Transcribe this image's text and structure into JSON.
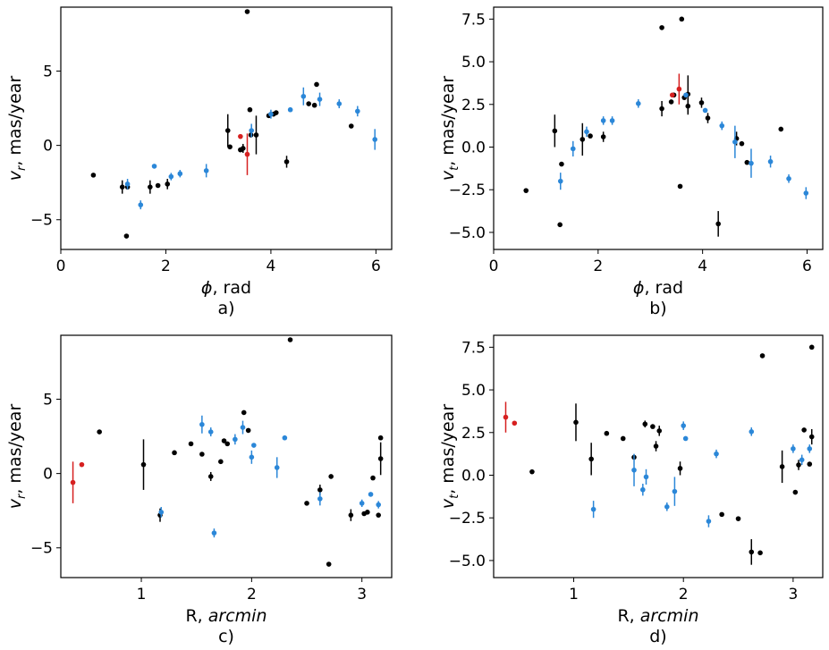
{
  "colors": {
    "black": "#000000",
    "blue": "#2b87d8",
    "red": "#d62020"
  },
  "chart_data": [
    {
      "id": "a",
      "type": "scatter",
      "panel_label": "a)",
      "xlabel_main": "ϕ",
      "xlabel_unit": ", rad",
      "ylabel_main": "v",
      "ylabel_sub": "r",
      "ylabel_unit": ", mas/year",
      "xlim": [
        0,
        6.3
      ],
      "ylim": [
        -7,
        9.3
      ],
      "xticks": [
        0,
        2,
        4,
        6
      ],
      "yticks": [
        -5,
        0,
        5
      ],
      "xticklabels": [
        "0",
        "2",
        "4",
        "6"
      ],
      "yticklabels": [
        "−5",
        "0",
        "5"
      ],
      "series": [
        {
          "name": "black",
          "color": "#000000",
          "points": [
            {
              "x": 0.62,
              "y": -2.0,
              "e": 0
            },
            {
              "x": 1.17,
              "y": -2.8,
              "e": 0.45
            },
            {
              "x": 1.25,
              "y": -6.1,
              "e": 0
            },
            {
              "x": 1.27,
              "y": -2.8,
              "e": 0
            },
            {
              "x": 1.7,
              "y": -2.8,
              "e": 0.45
            },
            {
              "x": 1.85,
              "y": -2.7,
              "e": 0
            },
            {
              "x": 2.03,
              "y": -2.6,
              "e": 0.35
            },
            {
              "x": 3.18,
              "y": 1.0,
              "e": 1.1
            },
            {
              "x": 3.22,
              "y": -0.1,
              "e": 0
            },
            {
              "x": 3.42,
              "y": -0.3,
              "e": 0
            },
            {
              "x": 3.47,
              "y": -0.2,
              "e": 0.3
            },
            {
              "x": 3.55,
              "y": 9.0,
              "e": 0
            },
            {
              "x": 3.6,
              "y": 2.4,
              "e": 0
            },
            {
              "x": 3.62,
              "y": 0.7,
              "e": 0
            },
            {
              "x": 3.72,
              "y": 0.7,
              "e": 1.3
            },
            {
              "x": 3.96,
              "y": 2.0,
              "e": 0
            },
            {
              "x": 4.05,
              "y": 2.1,
              "e": 0
            },
            {
              "x": 4.1,
              "y": 2.2,
              "e": 0
            },
            {
              "x": 4.3,
              "y": -1.1,
              "e": 0.4
            },
            {
              "x": 4.72,
              "y": 2.8,
              "e": 0
            },
            {
              "x": 4.83,
              "y": 2.7,
              "e": 0
            },
            {
              "x": 4.87,
              "y": 4.1,
              "e": 0
            },
            {
              "x": 5.53,
              "y": 1.3,
              "e": 0
            }
          ]
        },
        {
          "name": "blue",
          "color": "#2b87d8",
          "points": [
            {
              "x": 1.27,
              "y": -2.6,
              "e": 0.35
            },
            {
              "x": 1.52,
              "y": -4.0,
              "e": 0.3
            },
            {
              "x": 1.78,
              "y": -1.4,
              "e": 0
            },
            {
              "x": 2.1,
              "y": -2.1,
              "e": 0.25
            },
            {
              "x": 2.27,
              "y": -1.9,
              "e": 0.25
            },
            {
              "x": 2.77,
              "y": -1.7,
              "e": 0.45
            },
            {
              "x": 3.63,
              "y": 1.0,
              "e": 0.45
            },
            {
              "x": 4.0,
              "y": 2.1,
              "e": 0.3
            },
            {
              "x": 4.37,
              "y": 2.4,
              "e": 0
            },
            {
              "x": 4.62,
              "y": 3.3,
              "e": 0.6
            },
            {
              "x": 4.93,
              "y": 3.1,
              "e": 0.45
            },
            {
              "x": 5.3,
              "y": 2.8,
              "e": 0.3
            },
            {
              "x": 5.65,
              "y": 2.3,
              "e": 0.35
            },
            {
              "x": 5.98,
              "y": 0.4,
              "e": 0.7
            }
          ]
        },
        {
          "name": "red",
          "color": "#d62020",
          "points": [
            {
              "x": 3.42,
              "y": 0.6,
              "e": 0
            },
            {
              "x": 3.55,
              "y": -0.6,
              "e": 1.4
            }
          ]
        }
      ]
    },
    {
      "id": "b",
      "type": "scatter",
      "panel_label": "b)",
      "xlabel_main": "ϕ",
      "xlabel_unit": ", rad",
      "ylabel_main": "v",
      "ylabel_sub": "t",
      "ylabel_unit": ", mas/year",
      "xlim": [
        0,
        6.3
      ],
      "ylim": [
        -6.0,
        8.2
      ],
      "xticks": [
        0,
        2,
        4,
        6
      ],
      "yticks": [
        -5.0,
        -2.5,
        0.0,
        2.5,
        5.0,
        7.5
      ],
      "xticklabels": [
        "0",
        "2",
        "4",
        "6"
      ],
      "yticklabels": [
        "−5.0",
        "−2.5",
        "0.0",
        "2.5",
        "5.0",
        "7.5"
      ],
      "series": [
        {
          "name": "black",
          "color": "#000000",
          "points": [
            {
              "x": 0.62,
              "y": -2.55,
              "e": 0
            },
            {
              "x": 1.17,
              "y": 0.95,
              "e": 0.95
            },
            {
              "x": 1.27,
              "y": -4.55,
              "e": 0
            },
            {
              "x": 1.3,
              "y": -1.0,
              "e": 0
            },
            {
              "x": 1.7,
              "y": 0.45,
              "e": 0.95
            },
            {
              "x": 1.85,
              "y": 0.65,
              "e": 0
            },
            {
              "x": 2.1,
              "y": 0.6,
              "e": 0.3
            },
            {
              "x": 3.22,
              "y": 2.25,
              "e": 0.45
            },
            {
              "x": 3.22,
              "y": 7.0,
              "e": 0
            },
            {
              "x": 3.4,
              "y": 2.65,
              "e": 0
            },
            {
              "x": 3.45,
              "y": 3.05,
              "e": 0
            },
            {
              "x": 3.57,
              "y": -2.3,
              "e": 0
            },
            {
              "x": 3.6,
              "y": 7.5,
              "e": 0
            },
            {
              "x": 3.65,
              "y": 2.9,
              "e": 0
            },
            {
              "x": 3.72,
              "y": 3.1,
              "e": 1.1
            },
            {
              "x": 3.72,
              "y": 2.4,
              "e": 0.5
            },
            {
              "x": 3.98,
              "y": 2.6,
              "e": 0.3
            },
            {
              "x": 4.1,
              "y": 1.7,
              "e": 0.3
            },
            {
              "x": 4.3,
              "y": -4.5,
              "e": 0.75
            },
            {
              "x": 4.65,
              "y": 0.5,
              "e": 0.4
            },
            {
              "x": 4.75,
              "y": 0.2,
              "e": 0
            },
            {
              "x": 4.85,
              "y": -0.9,
              "e": 0
            },
            {
              "x": 5.5,
              "y": 1.05,
              "e": 0
            }
          ]
        },
        {
          "name": "blue",
          "color": "#2b87d8",
          "points": [
            {
              "x": 1.28,
              "y": -2.0,
              "e": 0.5
            },
            {
              "x": 1.52,
              "y": -0.1,
              "e": 0.45
            },
            {
              "x": 1.78,
              "y": 0.9,
              "e": 0.3
            },
            {
              "x": 2.1,
              "y": 1.55,
              "e": 0.25
            },
            {
              "x": 2.27,
              "y": 1.55,
              "e": 0.25
            },
            {
              "x": 2.77,
              "y": 2.55,
              "e": 0.25
            },
            {
              "x": 3.68,
              "y": 3.05,
              "e": 0
            },
            {
              "x": 4.05,
              "y": 2.15,
              "e": 0
            },
            {
              "x": 4.37,
              "y": 1.25,
              "e": 0.25
            },
            {
              "x": 4.62,
              "y": 0.3,
              "e": 0.95
            },
            {
              "x": 4.93,
              "y": -0.95,
              "e": 0.85
            },
            {
              "x": 5.3,
              "y": -0.85,
              "e": 0.35
            },
            {
              "x": 5.65,
              "y": -1.85,
              "e": 0.25
            },
            {
              "x": 5.98,
              "y": -2.7,
              "e": 0.35
            }
          ]
        },
        {
          "name": "red",
          "color": "#d62020",
          "points": [
            {
              "x": 3.42,
              "y": 3.05,
              "e": 0
            },
            {
              "x": 3.55,
              "y": 3.4,
              "e": 0.9
            }
          ]
        }
      ]
    },
    {
      "id": "c",
      "type": "scatter",
      "panel_label": "c)",
      "xlabel_main": "R, ",
      "xlabel_unit": "arcmin",
      "ylabel_main": "v",
      "ylabel_sub": "r",
      "ylabel_unit": ", mas/year",
      "xlim": [
        0.27,
        3.27
      ],
      "ylim": [
        -7,
        9.3
      ],
      "xticks": [
        1,
        2,
        3
      ],
      "yticks": [
        -5,
        0,
        5
      ],
      "xticklabels": [
        "1",
        "2",
        "3"
      ],
      "yticklabels": [
        "−5",
        "0",
        "5"
      ],
      "series": [
        {
          "name": "black",
          "color": "#000000",
          "points": [
            {
              "x": 0.62,
              "y": 2.8,
              "e": 0
            },
            {
              "x": 1.02,
              "y": 0.6,
              "e": 1.7
            },
            {
              "x": 1.17,
              "y": -2.8,
              "e": 0.45
            },
            {
              "x": 1.3,
              "y": 1.4,
              "e": 0
            },
            {
              "x": 1.45,
              "y": 2.0,
              "e": 0
            },
            {
              "x": 1.55,
              "y": 1.3,
              "e": 0
            },
            {
              "x": 1.63,
              "y": -0.2,
              "e": 0.3
            },
            {
              "x": 1.72,
              "y": 0.8,
              "e": 0
            },
            {
              "x": 1.75,
              "y": 2.2,
              "e": 0
            },
            {
              "x": 1.78,
              "y": 2.0,
              "e": 0
            },
            {
              "x": 1.93,
              "y": 4.1,
              "e": 0
            },
            {
              "x": 1.97,
              "y": 2.9,
              "e": 0
            },
            {
              "x": 2.35,
              "y": 9.0,
              "e": 0
            },
            {
              "x": 2.5,
              "y": -2.0,
              "e": 0
            },
            {
              "x": 2.62,
              "y": -1.1,
              "e": 0.35
            },
            {
              "x": 2.7,
              "y": -6.1,
              "e": 0
            },
            {
              "x": 2.72,
              "y": -0.2,
              "e": 0
            },
            {
              "x": 2.9,
              "y": -2.8,
              "e": 0.4
            },
            {
              "x": 3.02,
              "y": -2.7,
              "e": 0
            },
            {
              "x": 3.05,
              "y": -2.6,
              "e": 0
            },
            {
              "x": 3.1,
              "y": -0.3,
              "e": 0
            },
            {
              "x": 3.15,
              "y": -2.8,
              "e": 0
            },
            {
              "x": 3.17,
              "y": 1.0,
              "e": 1.1
            },
            {
              "x": 3.17,
              "y": 2.4,
              "e": 0
            }
          ]
        },
        {
          "name": "blue",
          "color": "#2b87d8",
          "points": [
            {
              "x": 1.18,
              "y": -2.6,
              "e": 0.35
            },
            {
              "x": 1.55,
              "y": 3.3,
              "e": 0.6
            },
            {
              "x": 1.63,
              "y": 2.8,
              "e": 0.3
            },
            {
              "x": 1.66,
              "y": -4.0,
              "e": 0.3
            },
            {
              "x": 1.85,
              "y": 2.3,
              "e": 0.35
            },
            {
              "x": 1.92,
              "y": 3.1,
              "e": 0.45
            },
            {
              "x": 2.0,
              "y": 1.1,
              "e": 0.45
            },
            {
              "x": 2.02,
              "y": 1.9,
              "e": 0
            },
            {
              "x": 2.23,
              "y": 0.4,
              "e": 0.7
            },
            {
              "x": 2.3,
              "y": 2.4,
              "e": 0
            },
            {
              "x": 2.62,
              "y": -1.7,
              "e": 0.45
            },
            {
              "x": 3.0,
              "y": -2.0,
              "e": 0.25
            },
            {
              "x": 3.08,
              "y": -1.4,
              "e": 0
            },
            {
              "x": 3.15,
              "y": -2.1,
              "e": 0.25
            }
          ]
        },
        {
          "name": "red",
          "color": "#d62020",
          "points": [
            {
              "x": 0.38,
              "y": -0.6,
              "e": 1.4
            },
            {
              "x": 0.46,
              "y": 0.6,
              "e": 0
            }
          ]
        }
      ]
    },
    {
      "id": "d",
      "type": "scatter",
      "panel_label": "d)",
      "xlabel_main": "R, ",
      "xlabel_unit": "arcmin",
      "ylabel_main": "v",
      "ylabel_sub": "t",
      "ylabel_unit": ", mas/year",
      "xlim": [
        0.27,
        3.27
      ],
      "ylim": [
        -6.0,
        8.2
      ],
      "xticks": [
        1,
        2,
        3
      ],
      "yticks": [
        -5.0,
        -2.5,
        0.0,
        2.5,
        5.0,
        7.5
      ],
      "xticklabels": [
        "1",
        "2",
        "3"
      ],
      "yticklabels": [
        "−5.0",
        "−2.5",
        "0.0",
        "2.5",
        "5.0",
        "7.5"
      ],
      "series": [
        {
          "name": "black",
          "color": "#000000",
          "points": [
            {
              "x": 0.62,
              "y": 0.2,
              "e": 0
            },
            {
              "x": 1.02,
              "y": 3.1,
              "e": 1.1
            },
            {
              "x": 1.16,
              "y": 0.95,
              "e": 0.95
            },
            {
              "x": 1.3,
              "y": 2.45,
              "e": 0
            },
            {
              "x": 1.45,
              "y": 2.15,
              "e": 0
            },
            {
              "x": 1.55,
              "y": 1.05,
              "e": 0
            },
            {
              "x": 1.65,
              "y": 3.0,
              "e": 0.2
            },
            {
              "x": 1.72,
              "y": 2.85,
              "e": 0
            },
            {
              "x": 1.75,
              "y": 1.7,
              "e": 0.3
            },
            {
              "x": 1.78,
              "y": 2.6,
              "e": 0.3
            },
            {
              "x": 1.97,
              "y": 0.4,
              "e": 0.4
            },
            {
              "x": 2.35,
              "y": -2.3,
              "e": 0
            },
            {
              "x": 2.5,
              "y": -2.55,
              "e": 0
            },
            {
              "x": 2.62,
              "y": -4.5,
              "e": 0.75
            },
            {
              "x": 2.7,
              "y": -4.55,
              "e": 0
            },
            {
              "x": 2.72,
              "y": 7.0,
              "e": 0
            },
            {
              "x": 2.9,
              "y": 0.5,
              "e": 0.95
            },
            {
              "x": 3.02,
              "y": -1.0,
              "e": 0
            },
            {
              "x": 3.05,
              "y": 0.6,
              "e": 0.3
            },
            {
              "x": 3.1,
              "y": 2.65,
              "e": 0
            },
            {
              "x": 3.15,
              "y": 0.65,
              "e": 0
            },
            {
              "x": 3.17,
              "y": 7.5,
              "e": 0
            },
            {
              "x": 3.17,
              "y": 2.25,
              "e": 0.45
            }
          ]
        },
        {
          "name": "blue",
          "color": "#2b87d8",
          "points": [
            {
              "x": 1.18,
              "y": -2.0,
              "e": 0.5
            },
            {
              "x": 1.55,
              "y": 0.3,
              "e": 0.95
            },
            {
              "x": 1.63,
              "y": -0.85,
              "e": 0.35
            },
            {
              "x": 1.66,
              "y": -0.1,
              "e": 0.45
            },
            {
              "x": 1.85,
              "y": -1.85,
              "e": 0.25
            },
            {
              "x": 1.92,
              "y": -0.95,
              "e": 0.85
            },
            {
              "x": 2.0,
              "y": 2.9,
              "e": 0.25
            },
            {
              "x": 2.02,
              "y": 2.15,
              "e": 0
            },
            {
              "x": 2.23,
              "y": -2.7,
              "e": 0.35
            },
            {
              "x": 2.3,
              "y": 1.25,
              "e": 0.25
            },
            {
              "x": 2.62,
              "y": 2.55,
              "e": 0.25
            },
            {
              "x": 3.0,
              "y": 1.55,
              "e": 0.25
            },
            {
              "x": 3.08,
              "y": 0.9,
              "e": 0.3
            },
            {
              "x": 3.15,
              "y": 1.55,
              "e": 0.25
            }
          ]
        },
        {
          "name": "red",
          "color": "#d62020",
          "points": [
            {
              "x": 0.38,
              "y": 3.4,
              "e": 0.9
            },
            {
              "x": 0.46,
              "y": 3.05,
              "e": 0
            }
          ]
        }
      ]
    }
  ]
}
